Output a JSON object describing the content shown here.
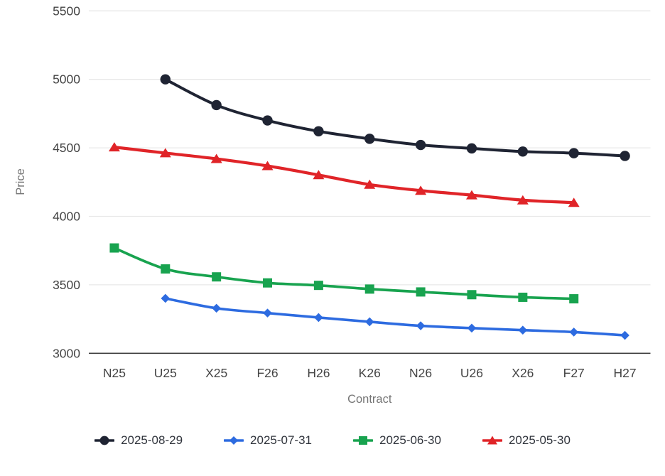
{
  "chart_data": {
    "type": "line",
    "title": "",
    "xlabel": "Contract",
    "ylabel": "Price",
    "categories": [
      "N25",
      "U25",
      "X25",
      "F26",
      "H26",
      "K26",
      "N26",
      "U26",
      "X26",
      "F27",
      "H27"
    ],
    "y_ticks": [
      3000,
      3500,
      4000,
      4500,
      5000,
      5500
    ],
    "ylim": [
      3000,
      5500
    ],
    "grid": "horizontal-light-gridlines",
    "legend_position": "bottom-center",
    "series": [
      {
        "name": "2025-08-29",
        "color": "#1f2433",
        "marker": "circle",
        "values": [
          null,
          5000,
          4812,
          4700,
          4621,
          4566,
          4521,
          4496,
          4473,
          4461,
          4441
        ]
      },
      {
        "name": "2025-07-31",
        "color": "#2d6be0",
        "marker": "diamond",
        "values": [
          null,
          3401,
          3329,
          3294,
          3261,
          3230,
          3201,
          3184,
          3169,
          3155,
          3131
        ]
      },
      {
        "name": "2025-06-30",
        "color": "#18a34f",
        "marker": "square",
        "values": [
          3769,
          3616,
          3558,
          3514,
          3496,
          3469,
          3448,
          3428,
          3409,
          3398,
          null
        ]
      },
      {
        "name": "2025-05-30",
        "color": "#e02428",
        "marker": "triangle",
        "values": [
          4505,
          4462,
          4420,
          4368,
          4302,
          4232,
          4188,
          4155,
          4118,
          4100,
          null
        ]
      }
    ],
    "colors": {
      "background": "#ffffff",
      "gridline": "#e8e8e8",
      "axis_line": "#3f3f3f",
      "tick_label": "#444444",
      "axis_title": "#757575",
      "legend_text": "#30343c"
    }
  }
}
